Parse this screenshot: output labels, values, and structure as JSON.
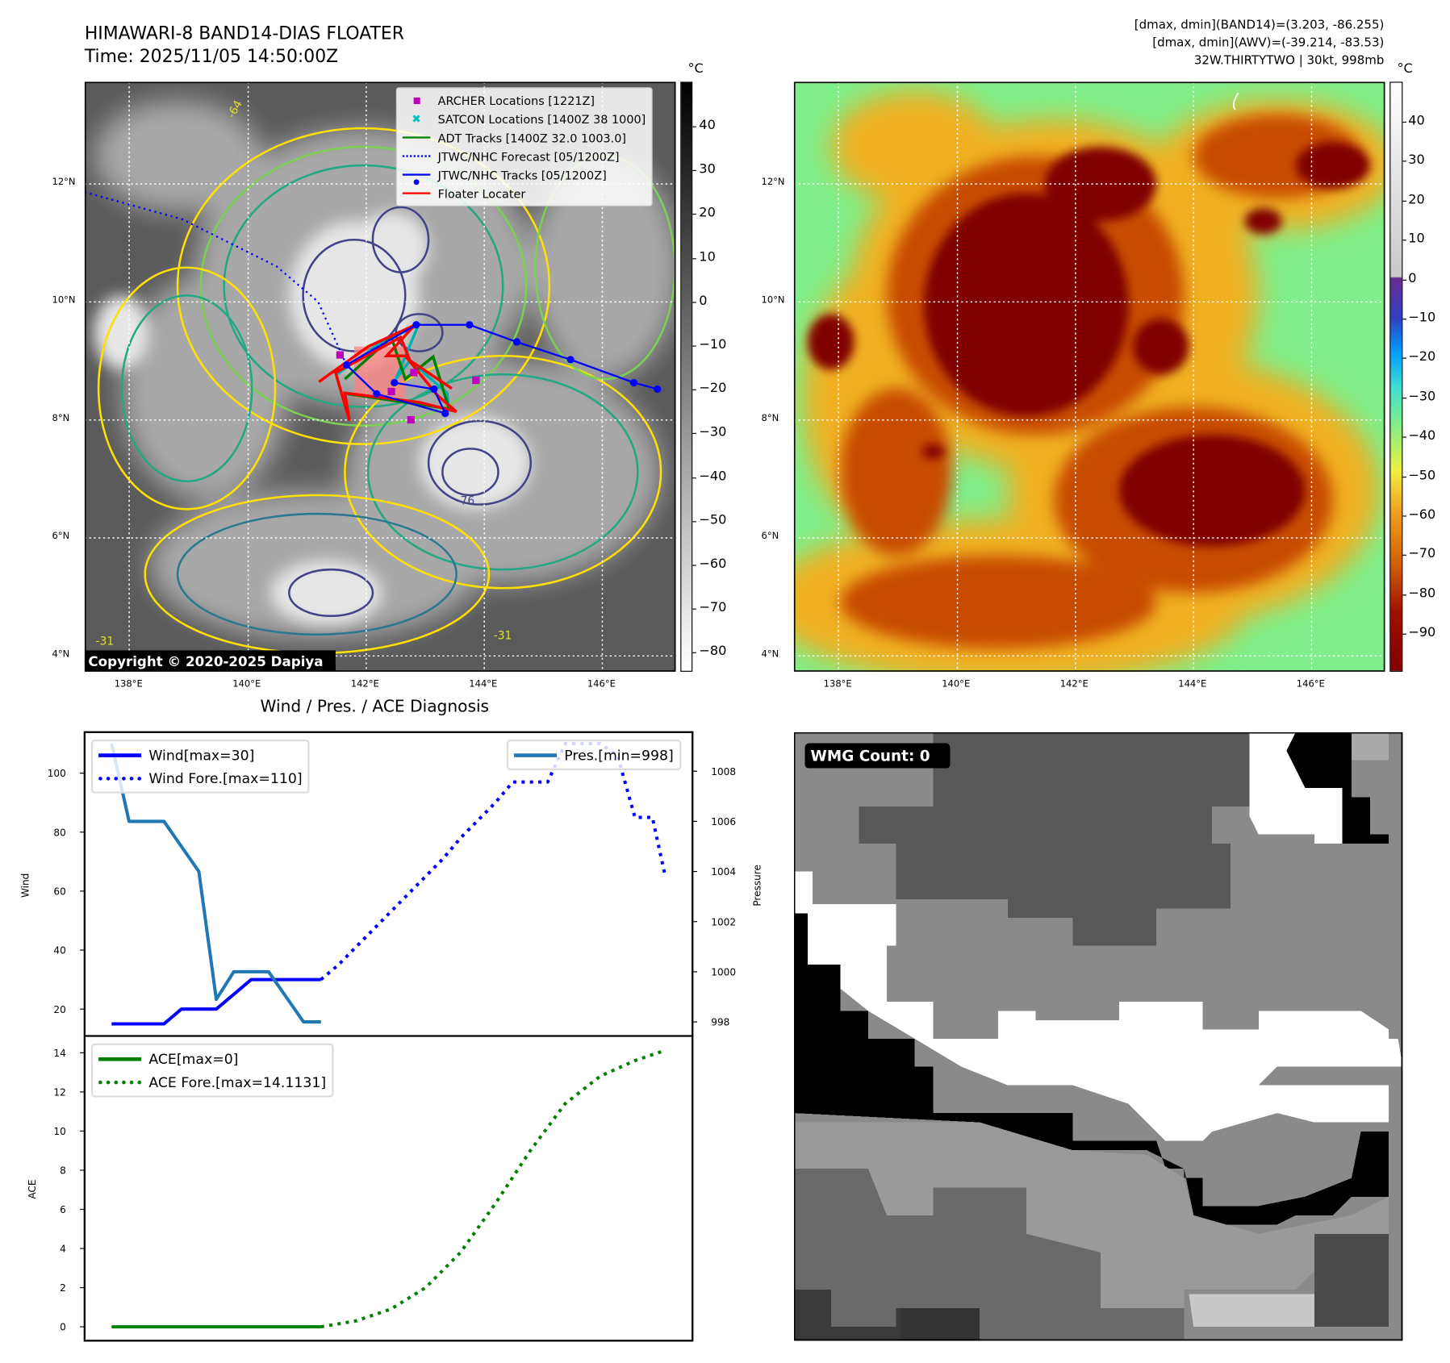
{
  "header": {
    "title": "HIMAWARI-8 BAND14-DIAS FLOATER",
    "time": "Time: 2025/11/05 14:50:00Z",
    "info_lines": [
      "[dmax, dmin](BAND14)=(3.203, -86.255)",
      "[dmax, dmin](AWV)=(-39.214, -83.53)",
      "32W.THIRTYTWO | 30kt, 998mb"
    ]
  },
  "map_axes": {
    "lon_ticks": [
      "138°E",
      "140°E",
      "142°E",
      "144°E",
      "146°E"
    ],
    "lat_ticks": [
      "12°N",
      "10°N",
      "8°N",
      "6°N",
      "4°N"
    ],
    "lon_range": [
      137.25,
      147.25
    ],
    "lat_range": [
      3.73,
      13.73
    ]
  },
  "left_map": {
    "copyright": "Copyright © 2020-2025 Dapiya",
    "colorbar_unit": "°C",
    "colorbar_ticks": [
      "40",
      "30",
      "20",
      "10",
      "0",
      "−10",
      "−20",
      "−30",
      "−40",
      "−50",
      "−60",
      "−70",
      "−80"
    ],
    "contour_labels": [
      "-64",
      "-76",
      "-31",
      "-31"
    ],
    "legend": [
      {
        "label": "ARCHER Locations [1221Z]",
        "color": "#c000c0",
        "icon": "square-marker"
      },
      {
        "label": "SATCON Locations [1400Z 38 1000]",
        "color": "#00c0c0",
        "icon": "x-marker"
      },
      {
        "label": "ADT Tracks [1400Z 32.0 1003.0]",
        "color": "#008000",
        "icon": "line"
      },
      {
        "label": "JTWC/NHC Forecast [05/1200Z]",
        "color": "#0000ff",
        "icon": "dotted-line"
      },
      {
        "label": "JTWC/NHC Tracks [05/1200Z]",
        "color": "#0000ff",
        "icon": "line-dot"
      },
      {
        "label": "Floater Locater",
        "color": "#ff0000",
        "icon": "line"
      }
    ],
    "jtwc_track": [
      [
        146.94,
        8.52
      ],
      [
        146.54,
        8.63
      ],
      [
        145.47,
        9.02
      ],
      [
        144.56,
        9.32
      ],
      [
        143.76,
        9.61
      ],
      [
        142.86,
        9.61
      ],
      [
        141.68,
        8.93
      ],
      [
        142.19,
        8.44
      ],
      [
        143.35,
        8.11
      ],
      [
        143.16,
        8.52
      ],
      [
        142.49,
        8.63
      ]
    ],
    "jtwc_forecast": [
      [
        137.25,
        11.86
      ],
      [
        138.9,
        11.4
      ],
      [
        140.5,
        10.6
      ],
      [
        141.2,
        10.0
      ],
      [
        141.68,
        8.93
      ]
    ],
    "archer_points": [
      [
        141.57,
        9.1
      ],
      [
        142.82,
        8.8
      ],
      [
        142.44,
        8.48
      ],
      [
        143.87,
        8.67
      ],
      [
        142.77,
        8.0
      ]
    ]
  },
  "right_map": {
    "colorbar_unit": "°C",
    "colorbar_ticks": [
      "40",
      "30",
      "20",
      "10",
      "0",
      "−10",
      "−20",
      "−30",
      "−40",
      "−50",
      "−60",
      "−70",
      "−80",
      "−90"
    ]
  },
  "diagnosis": {
    "title": "Wind / Pres. / ACE Diagnosis",
    "wind_ylabel": "Wind",
    "pres_ylabel": "Pressure",
    "ace_ylabel": "ACE",
    "legend_wind": "Wind[max=30]",
    "legend_wind_fore": "Wind Fore.[max=110]",
    "legend_pres": "Pres.[min=998]",
    "legend_ace": "ACE[max=0]",
    "legend_ace_fore": "ACE Fore.[max=14.1131]"
  },
  "wmg": {
    "label": "WMG Count: 0"
  },
  "chart_data": [
    {
      "type": "line",
      "title": "Wind / Pres. / ACE Diagnosis",
      "xlim": [
        -1.55,
        33.3
      ],
      "ylabel": "Wind",
      "ylim": [
        10.9,
        113.9
      ],
      "yticks": [
        20,
        40,
        60,
        80,
        100
      ],
      "y2label": "Pressure",
      "y2lim": [
        997.44,
        1009.56
      ],
      "y2ticks": [
        998,
        1000,
        1002,
        1004,
        1006,
        1008
      ],
      "series": [
        {
          "name": "Wind[max=30]",
          "axis": "left",
          "style": "solid",
          "color": "#0000ff",
          "x": [
            0,
            1,
            2,
            3,
            4,
            5,
            6,
            7,
            8,
            9,
            10,
            11,
            12
          ],
          "y": [
            15,
            15,
            15,
            15,
            20,
            20,
            20,
            25,
            30,
            30,
            30,
            30,
            30
          ]
        },
        {
          "name": "Wind Fore.[max=110]",
          "axis": "left",
          "style": "dotted",
          "color": "#0000ff",
          "x": [
            12,
            13,
            14,
            15,
            16,
            17,
            18,
            19,
            20,
            21,
            22,
            23,
            24,
            25,
            26,
            27,
            28,
            29,
            30,
            31,
            31.7
          ],
          "y": [
            30,
            35,
            41,
            47,
            53,
            59,
            65,
            71,
            78,
            84,
            90,
            97,
            97,
            97,
            110,
            110,
            110,
            106,
            85,
            85,
            66
          ]
        },
        {
          "name": "Pres.[min=998]",
          "axis": "right",
          "style": "solid",
          "color": "#1f77b4",
          "x": [
            0,
            1,
            2,
            3,
            4,
            5,
            6,
            7,
            8,
            9,
            10,
            11,
            12
          ],
          "y": [
            1009.1,
            1006,
            1006,
            1006,
            1005,
            1004,
            998.9,
            1000,
            1000,
            1000,
            999,
            998,
            998
          ]
        }
      ]
    },
    {
      "type": "line",
      "ylabel": "ACE",
      "xlim": [
        -1.55,
        33.3
      ],
      "ylim": [
        -0.71,
        14.86
      ],
      "yticks": [
        0,
        2,
        4,
        6,
        8,
        10,
        12,
        14
      ],
      "series": [
        {
          "name": "ACE[max=0]",
          "style": "solid",
          "color": "#008000",
          "x": [
            0,
            12
          ],
          "y": [
            0,
            0
          ]
        },
        {
          "name": "ACE Fore.[max=14.1131]",
          "style": "dotted",
          "color": "#008000",
          "x": [
            12,
            14,
            16,
            18,
            20,
            22,
            24,
            26,
            28,
            30,
            31.7
          ],
          "y": [
            0,
            0.3,
            0.9,
            2.0,
            3.8,
            6.3,
            9.0,
            11.4,
            12.8,
            13.6,
            14.1131
          ]
        }
      ]
    }
  ]
}
